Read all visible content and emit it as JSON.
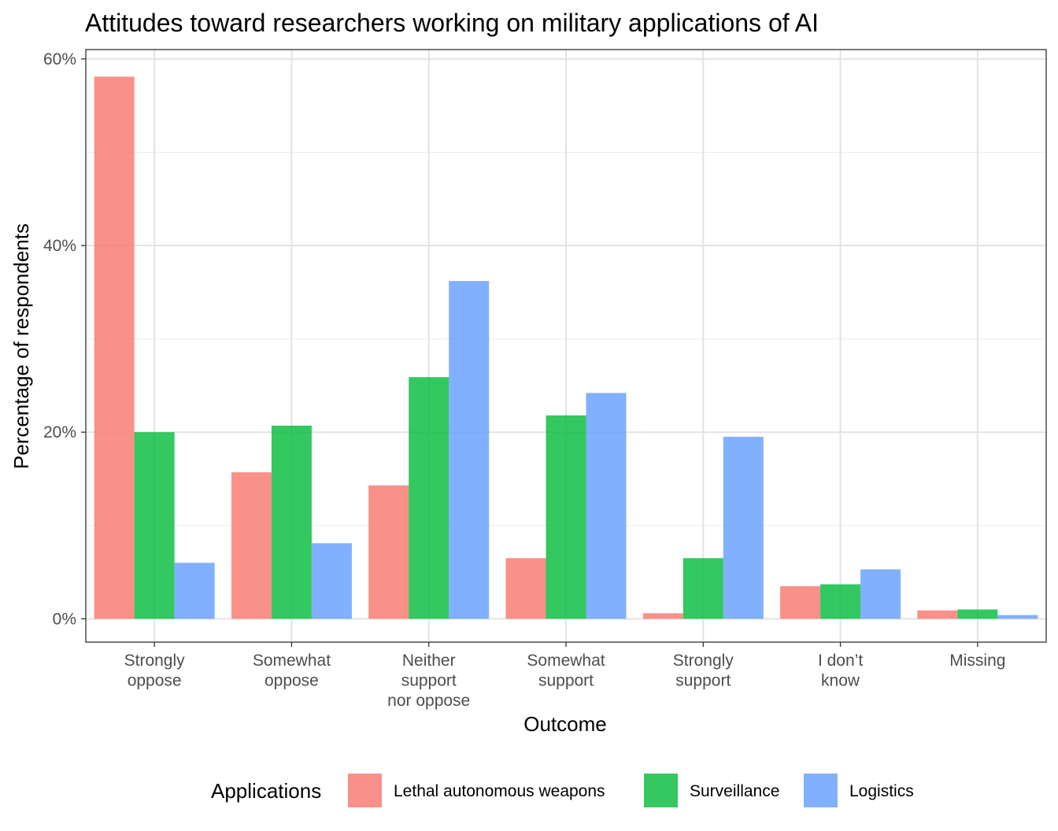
{
  "chart_data": {
    "type": "bar",
    "title": "Attitudes toward researchers working on military applications of AI",
    "xlabel": "Outcome",
    "ylabel": "Percentage of respondents",
    "categories": [
      [
        "Strongly",
        "oppose"
      ],
      [
        "Somewhat",
        "oppose"
      ],
      [
        "Neither",
        "support",
        "nor oppose"
      ],
      [
        "Somewhat",
        "support"
      ],
      [
        "Strongly",
        "support"
      ],
      [
        "I don’t",
        "know"
      ],
      [
        "Missing"
      ]
    ],
    "ylim": [
      -2.5,
      61
    ],
    "yticks": [
      0,
      20,
      40,
      60
    ],
    "ytick_labels": [
      "0%",
      "20%",
      "40%",
      "60%"
    ],
    "grid": true,
    "legend": {
      "title": "Applications",
      "position": "bottom"
    },
    "series": [
      {
        "name": "Lethal autonomous weapons",
        "color": "#F8766D",
        "values": [
          58.1,
          15.7,
          14.3,
          6.5,
          0.6,
          3.5,
          0.9
        ]
      },
      {
        "name": "Surveillance",
        "color": "#00BA38",
        "values": [
          20.0,
          20.7,
          25.9,
          21.8,
          6.5,
          3.7,
          1.0
        ]
      },
      {
        "name": "Logistics",
        "color": "#619CFF",
        "values": [
          6.0,
          8.1,
          36.2,
          24.2,
          19.5,
          5.3,
          0.4
        ]
      }
    ]
  }
}
